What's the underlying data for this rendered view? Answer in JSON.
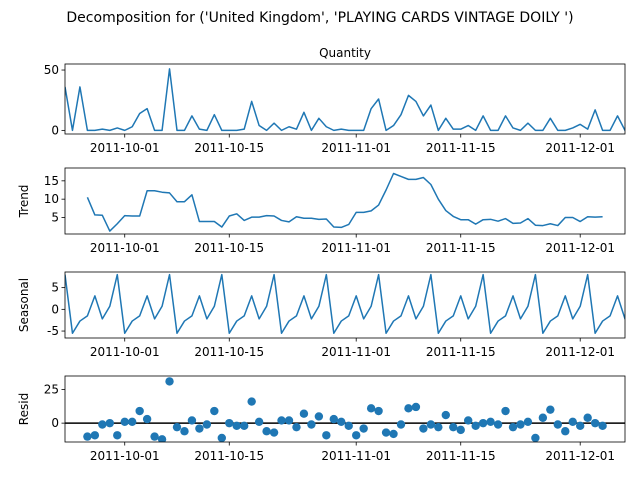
{
  "figure_title": "Decomposition for ('United Kingdom', 'PLAYING CARDS VINTAGE DOILY ')",
  "colors": {
    "line": "#1f77b4",
    "zero_line": "#000000"
  },
  "chart_data": [
    {
      "type": "line",
      "panel": "observed",
      "title": "Quantity",
      "ylabel": "",
      "x_start": "2011-09-23",
      "x_end": "2011-12-07",
      "xticks": [
        "2011-10-01",
        "2011-10-15",
        "2011-11-01",
        "2011-11-15",
        "2011-12-01"
      ],
      "ylim": [
        -3,
        55
      ],
      "yticks": [
        0,
        50
      ],
      "series": [
        {
          "x_start": "2011-09-23",
          "values": [
            36,
            0,
            36,
            0,
            0,
            1,
            0,
            2,
            0,
            3,
            14,
            18,
            0,
            0,
            51,
            0,
            0,
            12,
            1,
            0,
            13,
            0,
            0,
            0,
            1,
            24,
            4,
            0,
            6,
            0,
            3,
            1,
            15,
            0,
            10,
            3,
            0,
            1,
            0,
            0,
            0,
            18,
            26,
            0,
            4,
            13,
            29,
            24,
            12,
            21,
            0,
            10,
            1,
            1,
            4,
            0,
            12,
            0,
            0,
            12,
            2,
            0,
            6,
            0,
            0,
            10,
            0,
            0,
            2,
            5,
            1,
            17,
            0,
            0,
            12,
            0,
            5
          ]
        }
      ]
    },
    {
      "type": "line",
      "panel": "trend",
      "title": "",
      "ylabel": "Trend",
      "x_start": "2011-09-23",
      "x_end": "2011-12-07",
      "xticks": [
        "2011-10-01",
        "2011-10-15",
        "2011-11-01",
        "2011-11-15",
        "2011-12-01"
      ],
      "ylim": [
        0.5,
        18.5
      ],
      "yticks": [
        5,
        10,
        15
      ],
      "series": [
        {
          "x_start": "2011-09-26",
          "values": [
            10.5,
            5.7,
            5.6,
            1.3,
            3.3,
            5.5,
            5.4,
            5.4,
            12.3,
            12.3,
            11.9,
            11.7,
            9.3,
            9.3,
            11.2,
            3.9,
            3.9,
            3.9,
            2.4,
            5.4,
            6.0,
            4.2,
            5.1,
            5.1,
            5.5,
            5.4,
            4.2,
            3.8,
            5.2,
            4.8,
            4.8,
            4.5,
            4.6,
            2.4,
            2.3,
            3.1,
            6.4,
            6.4,
            6.8,
            8.4,
            12.5,
            17.0,
            16.2,
            15.4,
            15.4,
            15.9,
            14.0,
            10.0,
            6.9,
            5.3,
            4.4,
            4.4,
            3.2,
            4.4,
            4.5,
            4.0,
            4.7,
            3.4,
            3.5,
            4.7,
            2.9,
            2.8,
            3.3,
            2.8,
            5.0,
            5.0,
            3.9,
            5.2,
            5.1,
            5.2
          ]
        }
      ]
    },
    {
      "type": "line",
      "panel": "seasonal",
      "title": "",
      "ylabel": "Seasonal",
      "x_start": "2011-09-23",
      "x_end": "2011-12-07",
      "xticks": [
        "2011-10-01",
        "2011-10-15",
        "2011-11-01",
        "2011-11-15",
        "2011-12-01"
      ],
      "ylim": [
        -6.6,
        8.6
      ],
      "yticks": [
        -5,
        0,
        5
      ],
      "series": [
        {
          "x_start": "2011-09-23",
          "pattern_repeats": true,
          "values": [
            8,
            -5.5,
            -2.7,
            -1.5,
            3.1,
            -2.2,
            0.7,
            8,
            -5.5,
            -2.7,
            -1.5,
            3.1,
            -2.2,
            0.7,
            8,
            -5.5,
            -2.7,
            -1.5,
            3.1,
            -2.2,
            0.7,
            8,
            -5.5,
            -2.7,
            -1.5,
            3.1,
            -2.2,
            0.7,
            8,
            -5.5,
            -2.7,
            -1.5,
            3.1,
            -2.2,
            0.7,
            8,
            -5.5,
            -2.7,
            -1.5,
            3.1,
            -2.2,
            0.7,
            8,
            -5.5,
            -2.7,
            -1.5,
            3.1,
            -2.2,
            0.7,
            8,
            -5.5,
            -2.7,
            -1.5,
            3.1,
            -2.2,
            0.7,
            8,
            -5.5,
            -2.7,
            -1.5,
            3.1,
            -2.2,
            0.7,
            8,
            -5.5,
            -2.7,
            -1.5,
            3.1,
            -2.2,
            0.7,
            8,
            -5.5,
            -2.7,
            -1.5,
            3.1,
            -2.2,
            0.7
          ]
        }
      ]
    },
    {
      "type": "scatter",
      "panel": "resid",
      "title": "",
      "ylabel": "Resid",
      "x_start": "2011-09-23",
      "x_end": "2011-12-07",
      "xticks": [
        "2011-10-01",
        "2011-10-15",
        "2011-11-01",
        "2011-11-15",
        "2011-12-01"
      ],
      "ylim": [
        -14,
        35
      ],
      "yticks": [
        0,
        25
      ],
      "zero_line": true,
      "series": [
        {
          "x_start": "2011-09-26",
          "values": [
            -10,
            -9,
            -1,
            0,
            -9,
            1,
            1,
            9,
            3,
            -10,
            -12,
            31,
            -3,
            -6,
            2,
            -4,
            -1,
            9,
            -11,
            0,
            -2,
            -2,
            16,
            1,
            -6,
            -7,
            2,
            2,
            -3,
            7,
            -1,
            5,
            -9,
            3,
            1,
            -2,
            -9,
            -4,
            11,
            9,
            -7,
            -8,
            -1,
            11,
            12,
            -4,
            -1,
            -3,
            6,
            -3,
            -5,
            2,
            -2,
            0,
            1,
            -1,
            9,
            -3,
            -1,
            1,
            -11,
            4,
            10,
            -1,
            -6,
            1,
            -2,
            4,
            0,
            -2
          ]
        }
      ]
    }
  ]
}
